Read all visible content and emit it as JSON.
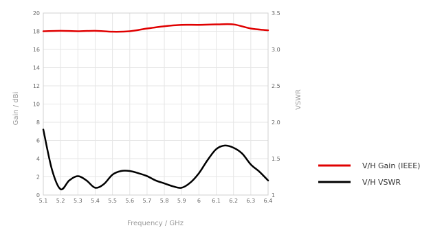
{
  "chart_data": {
    "type": "line",
    "xlabel": "Frequency / GHz",
    "ylabel_left": "Gain / dBi",
    "ylabel_right": "VSWR",
    "xlim": [
      5.1,
      6.4
    ],
    "ylim_left": [
      0,
      20
    ],
    "ylim_right": [
      1,
      3.5
    ],
    "x_ticks": [
      "5.1",
      "5.2",
      "5.3",
      "5.4",
      "5.5",
      "5.6",
      "5.7",
      "5.8",
      "5.9",
      "6",
      "6.1",
      "6.2",
      "6.3",
      "6.4"
    ],
    "y_left_ticks": [
      "0",
      "2",
      "4",
      "6",
      "8",
      "10",
      "12",
      "14",
      "16",
      "18",
      "20"
    ],
    "y_right_ticks": [
      "1",
      "1.5",
      "2.0",
      "2.5",
      "3.0",
      "3.5"
    ],
    "grid": true,
    "legend_position": "right",
    "series": [
      {
        "name": "V/H Gain (IEEE)",
        "axis": "left",
        "color": "#e00000",
        "x": [
          5.1,
          5.2,
          5.3,
          5.4,
          5.5,
          5.6,
          5.7,
          5.8,
          5.9,
          6.0,
          6.1,
          6.2,
          6.3,
          6.4
        ],
        "y": [
          18.0,
          18.05,
          18.0,
          18.05,
          17.95,
          18.0,
          18.3,
          18.55,
          18.7,
          18.7,
          18.75,
          18.75,
          18.3,
          18.1
        ]
      },
      {
        "name": "V/H VSWR",
        "axis": "right",
        "color": "#000000",
        "x": [
          5.1,
          5.15,
          5.2,
          5.25,
          5.3,
          5.35,
          5.4,
          5.45,
          5.5,
          5.55,
          5.6,
          5.65,
          5.7,
          5.75,
          5.8,
          5.85,
          5.9,
          5.95,
          6.0,
          6.05,
          6.1,
          6.15,
          6.2,
          6.25,
          6.3,
          6.35,
          6.4
        ],
        "y": [
          1.9,
          1.35,
          1.08,
          1.2,
          1.26,
          1.2,
          1.1,
          1.15,
          1.28,
          1.33,
          1.33,
          1.3,
          1.26,
          1.2,
          1.16,
          1.12,
          1.1,
          1.17,
          1.3,
          1.48,
          1.63,
          1.68,
          1.65,
          1.57,
          1.42,
          1.32,
          1.2
        ]
      }
    ]
  }
}
